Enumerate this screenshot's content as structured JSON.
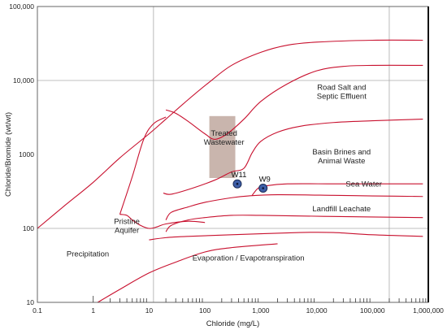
{
  "chart_data": {
    "type": "line",
    "title": "",
    "xlabel": "Chloride (mg/L)",
    "ylabel": "Chloride/Bromide (wt/wt)",
    "x_scale": "log",
    "y_scale": "log",
    "xlim": [
      0.1,
      1000000
    ],
    "ylim": [
      10,
      100000
    ],
    "grid": true,
    "x_ticks": [
      {
        "value": 0.1,
        "label": "0.1"
      },
      {
        "value": 1,
        "label": "1"
      },
      {
        "value": 10,
        "label": "10"
      },
      {
        "value": 100,
        "label": "100"
      },
      {
        "value": 1000,
        "label": "1,000"
      },
      {
        "value": 10000,
        "label": "10,000"
      },
      {
        "value": 100000,
        "label": "100,000"
      },
      {
        "value": 1000000,
        "label": "1,000,000"
      }
    ],
    "y_ticks": [
      {
        "value": 10,
        "label": "10"
      },
      {
        "value": 100,
        "label": "100"
      },
      {
        "value": 1000,
        "label": "1000"
      },
      {
        "value": 10000,
        "label": "10,000"
      },
      {
        "value": 100000,
        "label": "100,000"
      }
    ],
    "grid_x": [
      12,
      200000
    ],
    "grid_y": [
      100,
      10000
    ],
    "minor_ticks_x": [
      1,
      2,
      3,
      4,
      5,
      6,
      7,
      8,
      9,
      20,
      30,
      40,
      50,
      60,
      70,
      80,
      90,
      200,
      300,
      400,
      500,
      600,
      700,
      800,
      900,
      2000,
      3000,
      4000,
      5000,
      6000,
      7000,
      8000,
      9000,
      20000,
      30000,
      40000,
      50000,
      60000,
      70000,
      80000,
      90000,
      200000,
      300000,
      400000,
      500000,
      600000,
      700000,
      800000,
      900000
    ],
    "bold_vertical_line_x": 1000000,
    "series": [
      {
        "points": [
          [
            0.1,
            100
          ],
          [
            0.3,
            200
          ],
          [
            1,
            420
          ],
          [
            3,
            900
          ],
          [
            10,
            1900
          ],
          [
            20,
            3000
          ],
          [
            50,
            5500
          ],
          [
            120,
            9500
          ],
          [
            300,
            16000
          ],
          [
            1000,
            24000
          ],
          [
            3000,
            30000
          ],
          [
            10000,
            33000
          ],
          [
            100000,
            35000
          ],
          [
            800000,
            35000
          ]
        ]
      },
      {
        "points": [
          [
            20,
            4000
          ],
          [
            30,
            3600
          ],
          [
            50,
            2800
          ],
          [
            100,
            1900
          ],
          [
            150,
            1600
          ],
          [
            250,
            1900
          ],
          [
            500,
            3000
          ],
          [
            1000,
            5200
          ],
          [
            3000,
            9000
          ],
          [
            10000,
            13500
          ],
          [
            30000,
            15500
          ],
          [
            100000,
            16000
          ],
          [
            800000,
            16000
          ]
        ]
      },
      {
        "points": [
          [
            18,
            300
          ],
          [
            25,
            290
          ],
          [
            60,
            350
          ],
          [
            150,
            450
          ],
          [
            300,
            580
          ],
          [
            500,
            650
          ],
          [
            700,
            1050
          ],
          [
            1000,
            1500
          ],
          [
            2000,
            2000
          ],
          [
            5000,
            2400
          ],
          [
            20000,
            2700
          ],
          [
            100000,
            2850
          ],
          [
            800000,
            3000
          ]
        ]
      },
      {
        "points": [
          [
            700,
            280
          ],
          [
            900,
            350
          ],
          [
            1200,
            375
          ],
          [
            3000,
            400
          ],
          [
            20000,
            400
          ],
          [
            100000,
            400
          ],
          [
            800000,
            400
          ]
        ]
      },
      {
        "points": [
          [
            20,
            130
          ],
          [
            25,
            165
          ],
          [
            50,
            195
          ],
          [
            100,
            225
          ],
          [
            300,
            260
          ],
          [
            600,
            275
          ],
          [
            2000,
            285
          ],
          [
            20000,
            280
          ],
          [
            100000,
            275
          ],
          [
            800000,
            270
          ]
        ]
      },
      {
        "points": [
          [
            20,
            90
          ],
          [
            25,
            110
          ],
          [
            50,
            130
          ],
          [
            100,
            140
          ],
          [
            300,
            150
          ],
          [
            1000,
            150
          ],
          [
            20000,
            145
          ],
          [
            800000,
            140
          ]
        ]
      },
      {
        "points": [
          [
            10,
            70
          ],
          [
            20,
            75
          ],
          [
            50,
            78
          ],
          [
            300,
            82
          ],
          [
            5000,
            88
          ],
          [
            20000,
            88
          ],
          [
            100000,
            82
          ],
          [
            800000,
            78
          ]
        ]
      },
      {
        "points": [
          [
            3,
            155
          ],
          [
            4,
            150
          ],
          [
            5,
            130
          ],
          [
            7,
            110
          ],
          [
            10,
            100
          ],
          [
            14,
            105
          ],
          [
            20,
            115
          ],
          [
            50,
            125
          ],
          [
            100,
            120
          ]
        ]
      },
      {
        "points": [
          [
            3,
            155
          ],
          [
            5,
            500
          ],
          [
            8,
            1600
          ],
          [
            12,
            2600
          ],
          [
            20,
            3200
          ]
        ]
      },
      {
        "points": [
          [
            1.2,
            10
          ],
          [
            3,
            15
          ],
          [
            10,
            25
          ],
          [
            30,
            35
          ],
          [
            100,
            48
          ],
          [
            300,
            55
          ],
          [
            2000,
            62
          ]
        ]
      }
    ],
    "shaded_region": {
      "label": "Treated Wastewater",
      "x_range": [
        120,
        350
      ],
      "y_range": [
        480,
        3300
      ],
      "color": "#c9b5ad"
    },
    "points": [
      {
        "name": "W11",
        "x": 380,
        "y": 400
      },
      {
        "name": "W9",
        "x": 1100,
        "y": 350
      }
    ],
    "annotations": [
      {
        "lines": [
          "Road Salt and",
          "Septic Effluent"
        ],
        "x": 28000,
        "y": 7500,
        "anchor": "middle"
      },
      {
        "lines": [
          "Treated",
          "Wastewater"
        ],
        "x": 220,
        "y": 1800,
        "anchor": "middle"
      },
      {
        "lines": [
          "Basin Brines and",
          "Animal Waste"
        ],
        "x": 28000,
        "y": 1000,
        "anchor": "middle"
      },
      {
        "lines": [
          "Sea Water"
        ],
        "x": 70000,
        "y": 370,
        "anchor": "middle"
      },
      {
        "lines": [
          "Landfill Leachate"
        ],
        "x": 28000,
        "y": 170,
        "anchor": "middle"
      },
      {
        "lines": [
          "Pristine",
          "Aquifer"
        ],
        "x": 4,
        "y": 115,
        "anchor": "middle"
      },
      {
        "lines": [
          "Precipitation"
        ],
        "x": 0.8,
        "y": 42,
        "anchor": "middle"
      },
      {
        "lines": [
          "Evaporation / Evapotranspiration"
        ],
        "x": 600,
        "y": 37,
        "anchor": "middle"
      }
    ],
    "colors": {
      "curve": "#c8102e",
      "point_fill": "#3e5fa8",
      "point_stroke": "#1a2a55",
      "grid": "#aaaaaa",
      "axis": "#555555"
    }
  }
}
